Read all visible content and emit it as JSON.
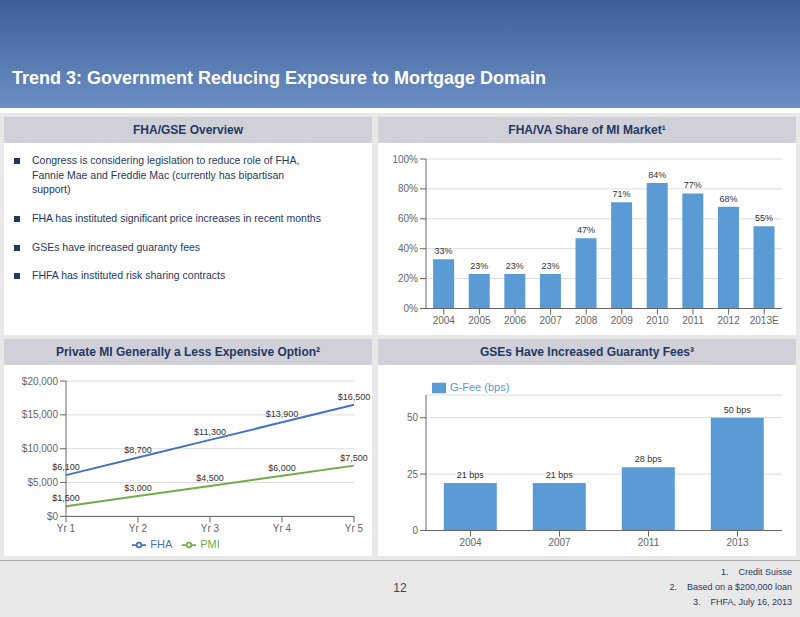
{
  "title": "Trend 3: Government Reducing Exposure to Mortgage Domain",
  "page_number": "12",
  "footnotes": [
    "1.    Credit Suisse",
    "2.    Based on a $200,000 loan",
    "3.    FHFA, July 16, 2013"
  ],
  "chart_data": [
    {
      "type": "text",
      "title": "FHA/GSE Overview",
      "annotations": [
        "Congress is considering legislation to reduce role of FHA,\nFannie Mae and Freddie Mac (currently has bipartisan\nsupport)",
        "FHA has instituted significant price increases in recent months",
        "GSEs have increased guaranty fees",
        "FHFA has instituted risk sharing contracts"
      ]
    },
    {
      "type": "bar",
      "title": "FHA/VA Share of MI Market¹",
      "categories": [
        "2004",
        "2005",
        "2006",
        "2007",
        "2008",
        "2009",
        "2010",
        "2011",
        "2012",
        "2013E"
      ],
      "values": [
        33,
        23,
        23,
        23,
        47,
        71,
        84,
        77,
        68,
        55
      ],
      "value_labels": [
        "33%",
        "23%",
        "23%",
        "23%",
        "47%",
        "71%",
        "84%",
        "77%",
        "68%",
        "55%"
      ],
      "color": "#5b9bd5",
      "ylim": [
        0,
        100
      ],
      "yticks": [
        {
          "value": 0,
          "label": "0%"
        },
        {
          "value": 20,
          "label": "20%"
        },
        {
          "value": 40,
          "label": "40%"
        },
        {
          "value": 60,
          "label": "60%"
        },
        {
          "value": 80,
          "label": "80%"
        },
        {
          "value": 100,
          "label": "100%"
        }
      ],
      "grid": true,
      "data_labels": true
    },
    {
      "type": "line",
      "title": "Private MI Generally a Less Expensive Option²",
      "categories": [
        "Yr 1",
        "Yr 2",
        "Yr 3",
        "Yr 4",
        "Yr 5"
      ],
      "series": [
        {
          "name": "FHA",
          "color": "#4472c4",
          "values": [
            6100,
            8700,
            11300,
            13900,
            16500
          ],
          "value_labels": [
            "$6,100",
            "$8,700",
            "$11,300",
            "$13,900",
            "$16,500"
          ]
        },
        {
          "name": "PMI",
          "color": "#70ad47",
          "values": [
            1500,
            3000,
            4500,
            6000,
            7500
          ],
          "value_labels": [
            "$1,500",
            "$3,000",
            "$4,500",
            "$6,000",
            "$7,500"
          ]
        }
      ],
      "ylim": [
        0,
        20000
      ],
      "yticks": [
        {
          "value": 0,
          "label": "$0"
        },
        {
          "value": 5000,
          "label": "$5,000"
        },
        {
          "value": 10000,
          "label": "$10,000"
        },
        {
          "value": 15000,
          "label": "$15,000"
        },
        {
          "value": 20000,
          "label": "$20,000"
        }
      ],
      "grid": true,
      "legend": "bottom",
      "marker": "none",
      "data_labels": true
    },
    {
      "type": "bar",
      "title": "GSEs Have Increased Guaranty Fees³",
      "categories": [
        "2004",
        "2007",
        "2011",
        "2013"
      ],
      "series": [
        {
          "name": "G-Fee (bps)",
          "color": "#5b9bd5",
          "values": [
            21,
            21,
            28,
            50
          ],
          "value_labels": [
            "21 bps",
            "21 bps",
            "28 bps",
            "50 bps"
          ]
        }
      ],
      "ylim": [
        0,
        60
      ],
      "yticks": [
        0,
        25,
        50
      ],
      "grid": true,
      "legend": "upper left",
      "data_labels": true
    }
  ]
}
